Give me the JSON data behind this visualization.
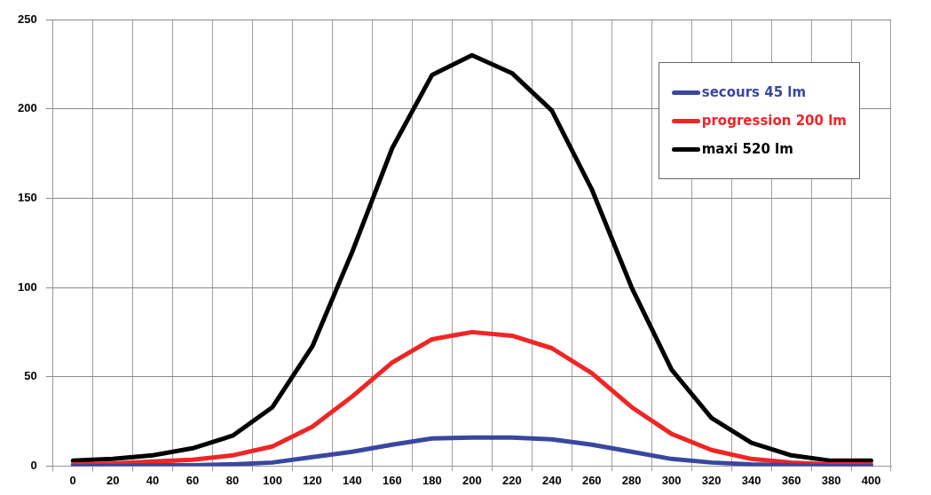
{
  "chart_data": {
    "type": "line",
    "categories": [
      "0",
      "20",
      "40",
      "60",
      "80",
      "100",
      "120",
      "140",
      "160",
      "180",
      "200",
      "220",
      "240",
      "260",
      "280",
      "300",
      "320",
      "340",
      "360",
      "380",
      "400"
    ],
    "series": [
      {
        "name": "secours 45 lm",
        "color": "#3a47a0",
        "values": [
          0,
          0,
          0.5,
          0.5,
          1,
          2,
          5,
          8,
          12,
          15.5,
          16,
          16,
          15,
          12,
          8,
          4,
          2,
          1,
          0.5,
          0,
          0
        ]
      },
      {
        "name": "progression 200 lm",
        "color": "#f02525",
        "values": [
          1,
          1.5,
          2.5,
          3.5,
          6,
          11,
          22,
          39,
          58,
          71,
          75,
          73,
          66,
          52,
          33,
          18,
          9,
          4,
          2,
          1,
          1
        ]
      },
      {
        "name": "maxi 520 lm",
        "color": "#000000",
        "values": [
          3,
          4,
          6,
          10,
          17,
          33,
          67,
          120,
          178,
          219,
          230,
          220,
          199,
          155,
          100,
          54,
          27,
          13,
          6,
          3,
          3
        ]
      }
    ],
    "ylim": [
      0,
      250
    ],
    "yticks": [
      0,
      50,
      100,
      150,
      200,
      250
    ],
    "grid": true,
    "legend": "top right",
    "marker": "none",
    "line_style": "solid"
  }
}
